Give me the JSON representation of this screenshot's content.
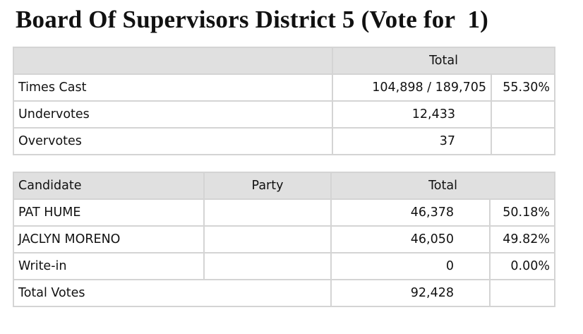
{
  "title": "Board Of Supervisors District 5 (Vote for  1)",
  "summary": {
    "header": "Total",
    "rows": [
      {
        "label": "Times Cast",
        "total": "104,898 / 189,705",
        "percent": "55.30%"
      },
      {
        "label": "Undervotes",
        "total": "12,433"
      },
      {
        "label": "Overvotes",
        "total": "37"
      }
    ]
  },
  "results": {
    "columns": [
      "Candidate",
      "Party",
      "Total"
    ],
    "rows": [
      {
        "candidate": "PAT HUME",
        "votes": "46,378",
        "percent": "50.18%"
      },
      {
        "candidate": "JACLYN MORENO",
        "votes": "46,050",
        "percent": "49.82%"
      },
      {
        "candidate": "Write-in",
        "votes": "0",
        "percent": "0.00%"
      }
    ],
    "total": {
      "label": "Total Votes",
      "votes": "92,428"
    }
  }
}
